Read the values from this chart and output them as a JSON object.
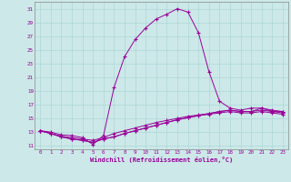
{
  "xlabel": "Windchill (Refroidissement éolien,°C)",
  "bg_color": "#cce8e8",
  "line_color": "#990099",
  "xlim": [
    -0.5,
    23.5
  ],
  "ylim": [
    10.5,
    32
  ],
  "yticks": [
    11,
    13,
    15,
    17,
    19,
    21,
    23,
    25,
    27,
    29,
    31
  ],
  "xticks": [
    0,
    1,
    2,
    3,
    4,
    5,
    6,
    7,
    8,
    9,
    10,
    11,
    12,
    13,
    14,
    15,
    16,
    17,
    18,
    19,
    20,
    21,
    22,
    23
  ],
  "lines": [
    {
      "x": [
        0,
        1,
        2,
        3,
        4,
        5,
        6,
        7,
        8,
        9,
        10,
        11,
        12,
        13,
        14,
        15,
        16,
        17,
        18,
        19,
        20,
        21,
        22,
        23
      ],
      "y": [
        13.2,
        13.0,
        12.6,
        12.5,
        12.2,
        11.2,
        12.5,
        19.5,
        24.0,
        26.5,
        28.2,
        29.5,
        30.2,
        31.0,
        30.5,
        27.5,
        21.8,
        17.5,
        16.5,
        16.2,
        16.5,
        16.5,
        16.2,
        16.0
      ]
    },
    {
      "x": [
        0,
        1,
        2,
        3,
        4,
        5,
        6,
        7,
        8,
        9,
        10,
        11,
        12,
        13,
        14,
        15,
        16,
        17,
        18,
        19,
        20,
        21,
        22,
        23
      ],
      "y": [
        13.2,
        12.8,
        12.4,
        12.2,
        12.0,
        11.8,
        12.2,
        12.8,
        13.2,
        13.6,
        14.0,
        14.4,
        14.7,
        15.0,
        15.3,
        15.5,
        15.7,
        16.0,
        16.2,
        16.0,
        16.0,
        16.5,
        16.0,
        16.0
      ]
    },
    {
      "x": [
        0,
        1,
        2,
        3,
        4,
        5,
        6,
        7,
        8,
        9,
        10,
        11,
        12,
        13,
        14,
        15,
        16,
        17,
        18,
        19,
        20,
        21,
        22,
        23
      ],
      "y": [
        13.2,
        12.8,
        12.3,
        12.0,
        11.8,
        11.5,
        12.0,
        12.3,
        12.8,
        13.2,
        13.6,
        14.0,
        14.4,
        14.8,
        15.1,
        15.4,
        15.7,
        16.0,
        16.2,
        16.0,
        16.0,
        16.2,
        16.0,
        15.8
      ]
    },
    {
      "x": [
        0,
        1,
        2,
        3,
        4,
        5,
        6,
        7,
        8,
        9,
        10,
        11,
        12,
        13,
        14,
        15,
        16,
        17,
        18,
        19,
        20,
        21,
        22,
        23
      ],
      "y": [
        13.2,
        12.8,
        12.3,
        12.0,
        11.8,
        11.5,
        12.0,
        12.3,
        12.8,
        13.2,
        13.6,
        14.0,
        14.4,
        14.8,
        15.1,
        15.4,
        15.6,
        15.8,
        16.0,
        15.8,
        15.8,
        16.0,
        15.8,
        15.6
      ]
    }
  ]
}
